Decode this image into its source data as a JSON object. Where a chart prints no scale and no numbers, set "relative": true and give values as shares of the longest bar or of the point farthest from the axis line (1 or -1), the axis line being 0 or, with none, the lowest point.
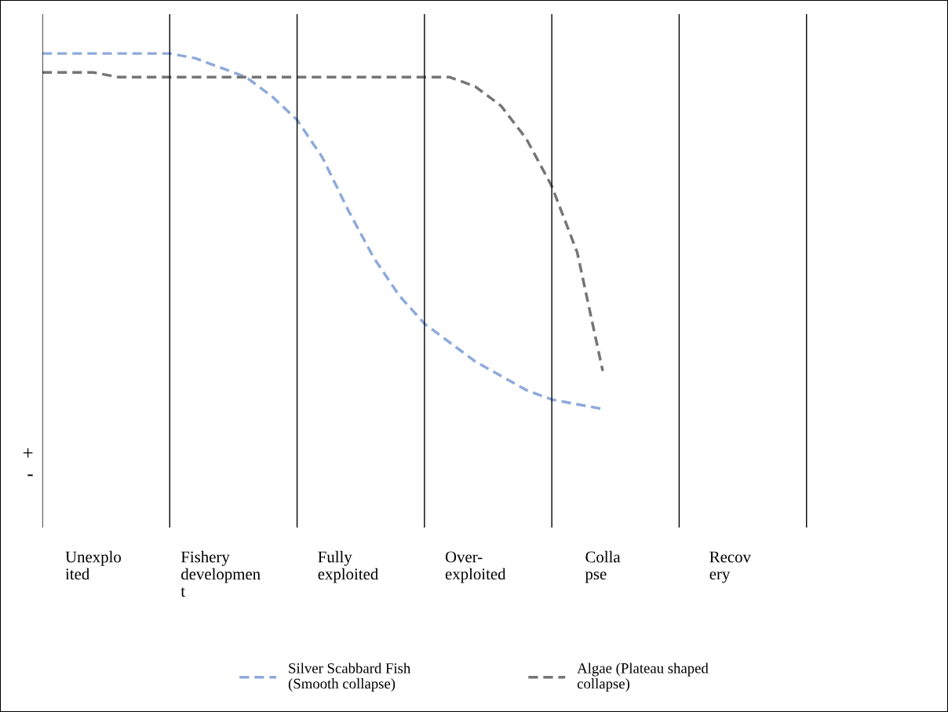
{
  "chart_data": {
    "type": "line",
    "relative": true,
    "line_style": "dashed",
    "marker": "none",
    "grid": "x",
    "legend": "bottom",
    "categories": [
      null,
      null,
      "Unexplo\nited",
      null,
      null,
      null,
      null,
      "Fishery\ndevelopmen\nt",
      null,
      null,
      null,
      null,
      "Fully\nexploited",
      null,
      null,
      null,
      null,
      "Over-\nexploited",
      null,
      null,
      null,
      null,
      "Colla\npse",
      null,
      null,
      null,
      null,
      "Recov\nery",
      null,
      null,
      null
    ],
    "series": [
      {
        "name": "Silver Scabbard Fish\n(Smooth collapse)",
        "color": "#8eaadb",
        "values": [
          1.0,
          1.0,
          1.0,
          1.0,
          1.0,
          1.0,
          0.99,
          0.97,
          0.95,
          0.91,
          0.86,
          0.78,
          0.67,
          0.57,
          0.49,
          0.43,
          0.39,
          0.35,
          0.32,
          0.29,
          0.27,
          0.26,
          0.25,
          null,
          null,
          null,
          null,
          null,
          null,
          null,
          null
        ]
      },
      {
        "name": "Algae (Plateau shaped\ncollapse)",
        "color": "#757575",
        "values": [
          0.96,
          0.96,
          0.96,
          0.95,
          0.95,
          0.95,
          0.95,
          0.95,
          0.95,
          0.95,
          0.95,
          0.95,
          0.95,
          0.95,
          0.95,
          0.95,
          0.95,
          0.93,
          0.89,
          0.82,
          0.72,
          0.58,
          0.33,
          null,
          null,
          null,
          null,
          null,
          null,
          null,
          null
        ]
      }
    ],
    "annotations": [
      "+",
      "-"
    ]
  }
}
